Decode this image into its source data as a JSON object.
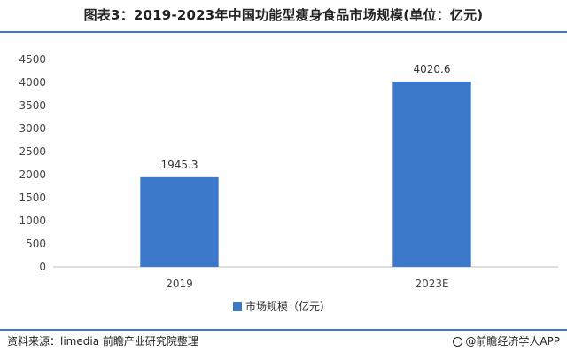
{
  "header": {
    "title": "图表3：2019-2023年中国功能型瘦身食品市场规模(单位：亿元)"
  },
  "chart_data": {
    "type": "bar",
    "title": "图表3：2019-2023年中国功能型瘦身食品市场规模(单位：亿元)",
    "categories": [
      "2019",
      "2023E"
    ],
    "series": [
      {
        "name": "市场规模（亿元）",
        "values": [
          1945.3,
          4020.6
        ],
        "labels": [
          "1945.3",
          "4020.6"
        ]
      }
    ],
    "ylim": [
      0,
      4500
    ],
    "yticks": [
      0,
      500,
      1000,
      1500,
      2000,
      2500,
      3000,
      3500,
      4000,
      4500
    ],
    "grid": false,
    "legend": "bottom-center",
    "bar_color": "#3b78c9"
  },
  "footer": {
    "source": "资料来源：limedia 前瞻产业研究院整理",
    "credit": "@前瞻经济学人APP"
  }
}
